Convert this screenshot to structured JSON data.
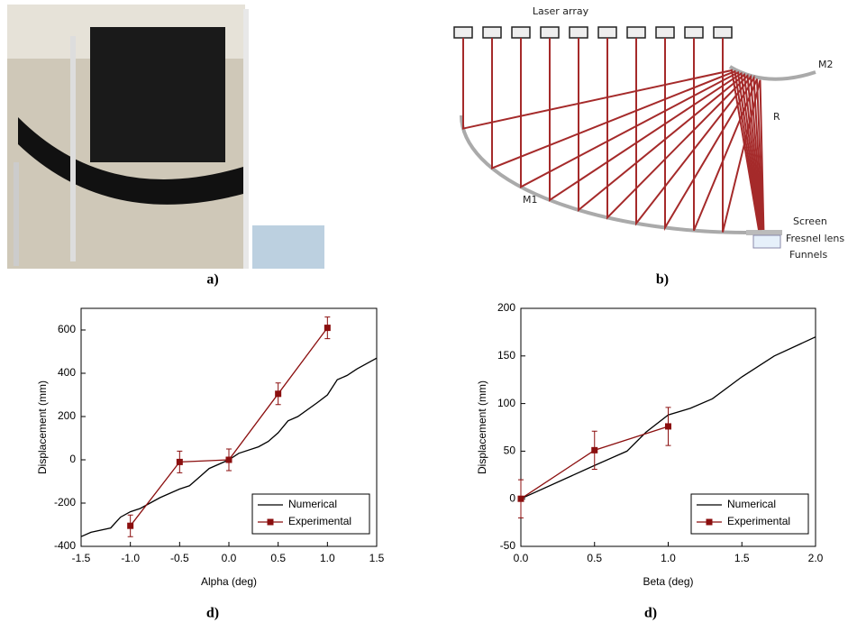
{
  "photo": {
    "caption": "a)"
  },
  "diagram": {
    "caption": "b)",
    "laser_label": "Laser array",
    "m2_label": "M2",
    "r_label": "R",
    "m1_label": "M1",
    "screen_label": "Screen",
    "lens_label": "Fresnel lens",
    "funnels_label": "Funnels"
  },
  "chart_data": [
    {
      "type": "line",
      "caption": "d)",
      "xlabel": "Alpha (deg)",
      "ylabel": "Displacement (mm)",
      "xlim": [
        -1.5,
        1.5
      ],
      "xticks": [
        {
          "value": -1.5,
          "label": "-1.5"
        },
        {
          "value": -1,
          "label": "-1.0"
        },
        {
          "value": -0.5,
          "label": "-0.5"
        },
        {
          "value": 0,
          "label": "0.0"
        },
        {
          "value": 0.5,
          "label": "0.5"
        },
        {
          "value": 1,
          "label": "1.0"
        },
        {
          "value": 1.5,
          "label": "1.5"
        }
      ],
      "ylim": [
        -400,
        700
      ],
      "yticks": [
        -400,
        -200,
        0,
        200,
        400,
        600
      ],
      "legend": "lower right",
      "series": [
        {
          "name": "Numerical",
          "color": "#000000",
          "x": [
            -1.5,
            -1.4,
            -1.2,
            -1.1,
            -1.0,
            -0.9,
            -0.7,
            -0.5,
            -0.4,
            -0.3,
            -0.2,
            0,
            0.1,
            0.3,
            0.4,
            0.5,
            0.6,
            0.7,
            0.9,
            1.0,
            1.1,
            1.2,
            1.3,
            1.5
          ],
          "values": [
            -355,
            -335,
            -315,
            -265,
            -240,
            -225,
            -175,
            -135,
            -120,
            -80,
            -40,
            0,
            30,
            60,
            85,
            125,
            180,
            200,
            265,
            300,
            370,
            390,
            420,
            470
          ]
        },
        {
          "name": "Experimental",
          "color": "#8b0f0f",
          "x": [
            -1,
            -0.5,
            0,
            0.5,
            1
          ],
          "values": [
            -305,
            -10,
            0,
            305,
            610
          ],
          "errors": [
            50,
            50,
            50,
            50,
            50
          ]
        }
      ]
    },
    {
      "type": "line",
      "caption": "d)",
      "xlabel": "Beta (deg)",
      "ylabel": "Displacement (mm)",
      "xlim": [
        0,
        2
      ],
      "xticks": [
        {
          "value": 0,
          "label": "0.0"
        },
        {
          "value": 0.5,
          "label": "0.5"
        },
        {
          "value": 1,
          "label": "1.0"
        },
        {
          "value": 1.5,
          "label": "1.5"
        },
        {
          "value": 2,
          "label": "2.0"
        }
      ],
      "ylim": [
        -50,
        200
      ],
      "yticks": [
        -50,
        0,
        50,
        100,
        150,
        200
      ],
      "legend": "lower right",
      "series": [
        {
          "name": "Numerical",
          "color": "#000000",
          "x": [
            0,
            0.5,
            0.72,
            0.85,
            1.0,
            1.15,
            1.3,
            1.5,
            1.72,
            2.0
          ],
          "values": [
            0,
            35,
            50,
            70,
            88,
            95,
            105,
            128,
            150,
            170
          ]
        },
        {
          "name": "Experimental",
          "color": "#8b0f0f",
          "x": [
            0,
            0.5,
            1
          ],
          "values": [
            0,
            51,
            76
          ],
          "errors": [
            20,
            20,
            20
          ]
        }
      ]
    }
  ]
}
